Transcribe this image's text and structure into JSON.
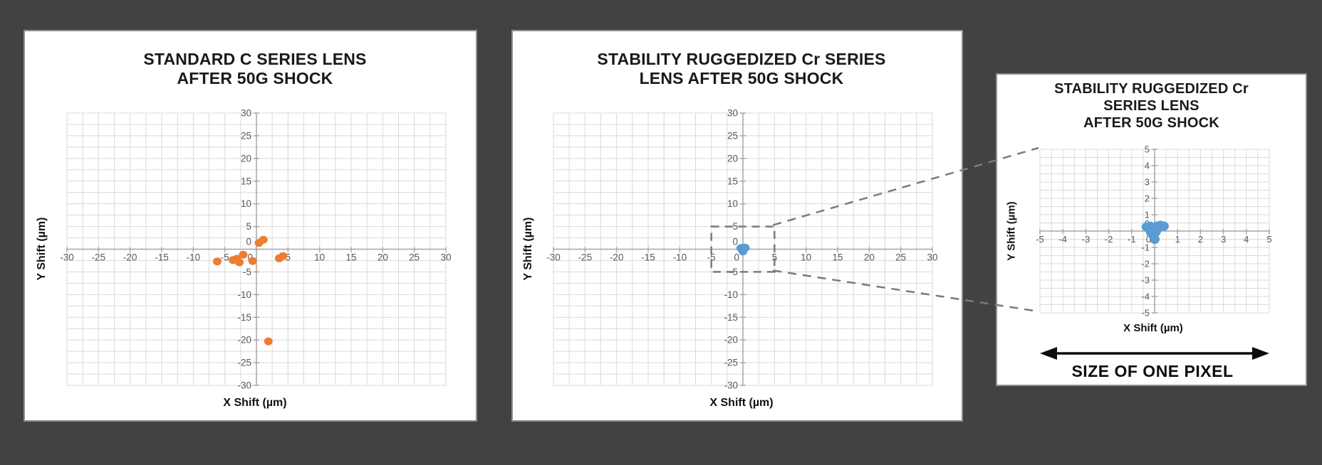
{
  "colors": {
    "page_bg": "#424242",
    "panel_bg": "#FFFFFF",
    "panel_border": "#8F8F8F",
    "grid": "#D9D9D9",
    "axis": "#A6A6A6",
    "tick_text": "#595959",
    "title_text": "#1A1A1A",
    "dashed_callout": "#7A7A7A",
    "orange_marker": "#ED7D31",
    "blue_marker": "#5B9BD5",
    "arrow_black": "#0D0D0D"
  },
  "chart_data": [
    {
      "id": "standard-c",
      "type": "scatter",
      "title_lines": [
        "STANDARD C SERIES LENS",
        "AFTER 50G SHOCK"
      ],
      "xlabel": "X Shift (µm)",
      "ylabel": "Y Shift (µm)",
      "xlim": [
        -30,
        30
      ],
      "ylim": [
        -30,
        30
      ],
      "grid_step": 2.5,
      "x_ticks": [
        -30,
        -25,
        -20,
        -15,
        -10,
        -5,
        0,
        5,
        10,
        15,
        20,
        25,
        30
      ],
      "y_ticks": [
        -30,
        -25,
        -20,
        -15,
        -10,
        -5,
        0,
        5,
        10,
        15,
        20,
        25,
        30
      ],
      "grid": true,
      "legend": false,
      "marker_color": "#ED7D31",
      "points": [
        [
          -6.2,
          -2.7
        ],
        [
          -3.7,
          -2.4
        ],
        [
          -3.1,
          -2.1
        ],
        [
          -2.7,
          -2.9
        ],
        [
          -2.1,
          -1.2
        ],
        [
          -0.6,
          -2.6
        ],
        [
          0.4,
          1.4
        ],
        [
          1.1,
          2.1
        ],
        [
          3.6,
          -2.0
        ],
        [
          4.2,
          -1.5
        ],
        [
          1.9,
          -20.3
        ]
      ]
    },
    {
      "id": "ruggedized-cr",
      "type": "scatter",
      "title_lines": [
        "STABILITY RUGGEDIZED Cr SERIES",
        "LENS AFTER 50G SHOCK"
      ],
      "xlabel": "X Shift (µm)",
      "ylabel": "Y Shift (µm)",
      "xlim": [
        -30,
        30
      ],
      "ylim": [
        -30,
        30
      ],
      "grid_step": 2.5,
      "x_ticks": [
        -30,
        -25,
        -20,
        -15,
        -10,
        -5,
        0,
        5,
        10,
        15,
        20,
        25,
        30
      ],
      "y_ticks": [
        -30,
        -25,
        -20,
        -15,
        -10,
        -5,
        0,
        5,
        10,
        15,
        20,
        25,
        30
      ],
      "grid": true,
      "legend": false,
      "marker_color": "#5B9BD5",
      "zoom_box": {
        "x": [
          -5,
          5
        ],
        "y": [
          -5,
          5
        ]
      },
      "points": [
        [
          -0.35,
          0.25
        ],
        [
          -0.2,
          0.3
        ],
        [
          0.1,
          0.3
        ],
        [
          0.25,
          0.35
        ],
        [
          0.4,
          0.3
        ],
        [
          -0.2,
          0.05
        ],
        [
          -0.05,
          0.15
        ],
        [
          0.1,
          0.1
        ],
        [
          -0.15,
          -0.1
        ],
        [
          0.05,
          -0.05
        ],
        [
          -0.05,
          -0.3
        ],
        [
          0,
          -0.5
        ]
      ]
    },
    {
      "id": "ruggedized-cr-zoom",
      "type": "scatter",
      "title_lines": [
        "STABILITY RUGGEDIZED Cr",
        "SERIES LENS",
        "AFTER 50G SHOCK"
      ],
      "xlabel": "X Shift (µm)",
      "ylabel": "Y Shift (µm)",
      "xlim": [
        -5,
        5
      ],
      "ylim": [
        -5,
        5
      ],
      "grid_step": 0.5,
      "x_ticks": [
        -5,
        -4,
        -3,
        -2,
        -1,
        0,
        1,
        2,
        3,
        4,
        5
      ],
      "y_ticks": [
        -5,
        -4,
        -3,
        -2,
        -1,
        0,
        1,
        2,
        3,
        4,
        5
      ],
      "grid": true,
      "legend": false,
      "marker_color": "#5B9BD5",
      "annotation": "SIZE OF ONE PIXEL",
      "points": [
        [
          -0.35,
          0.25
        ],
        [
          -0.2,
          0.3
        ],
        [
          0.1,
          0.3
        ],
        [
          0.25,
          0.35
        ],
        [
          0.4,
          0.3
        ],
        [
          -0.2,
          0.05
        ],
        [
          -0.05,
          0.15
        ],
        [
          0.1,
          0.1
        ],
        [
          -0.15,
          -0.1
        ],
        [
          0.05,
          -0.05
        ],
        [
          -0.05,
          -0.3
        ],
        [
          0,
          -0.5
        ]
      ]
    }
  ]
}
